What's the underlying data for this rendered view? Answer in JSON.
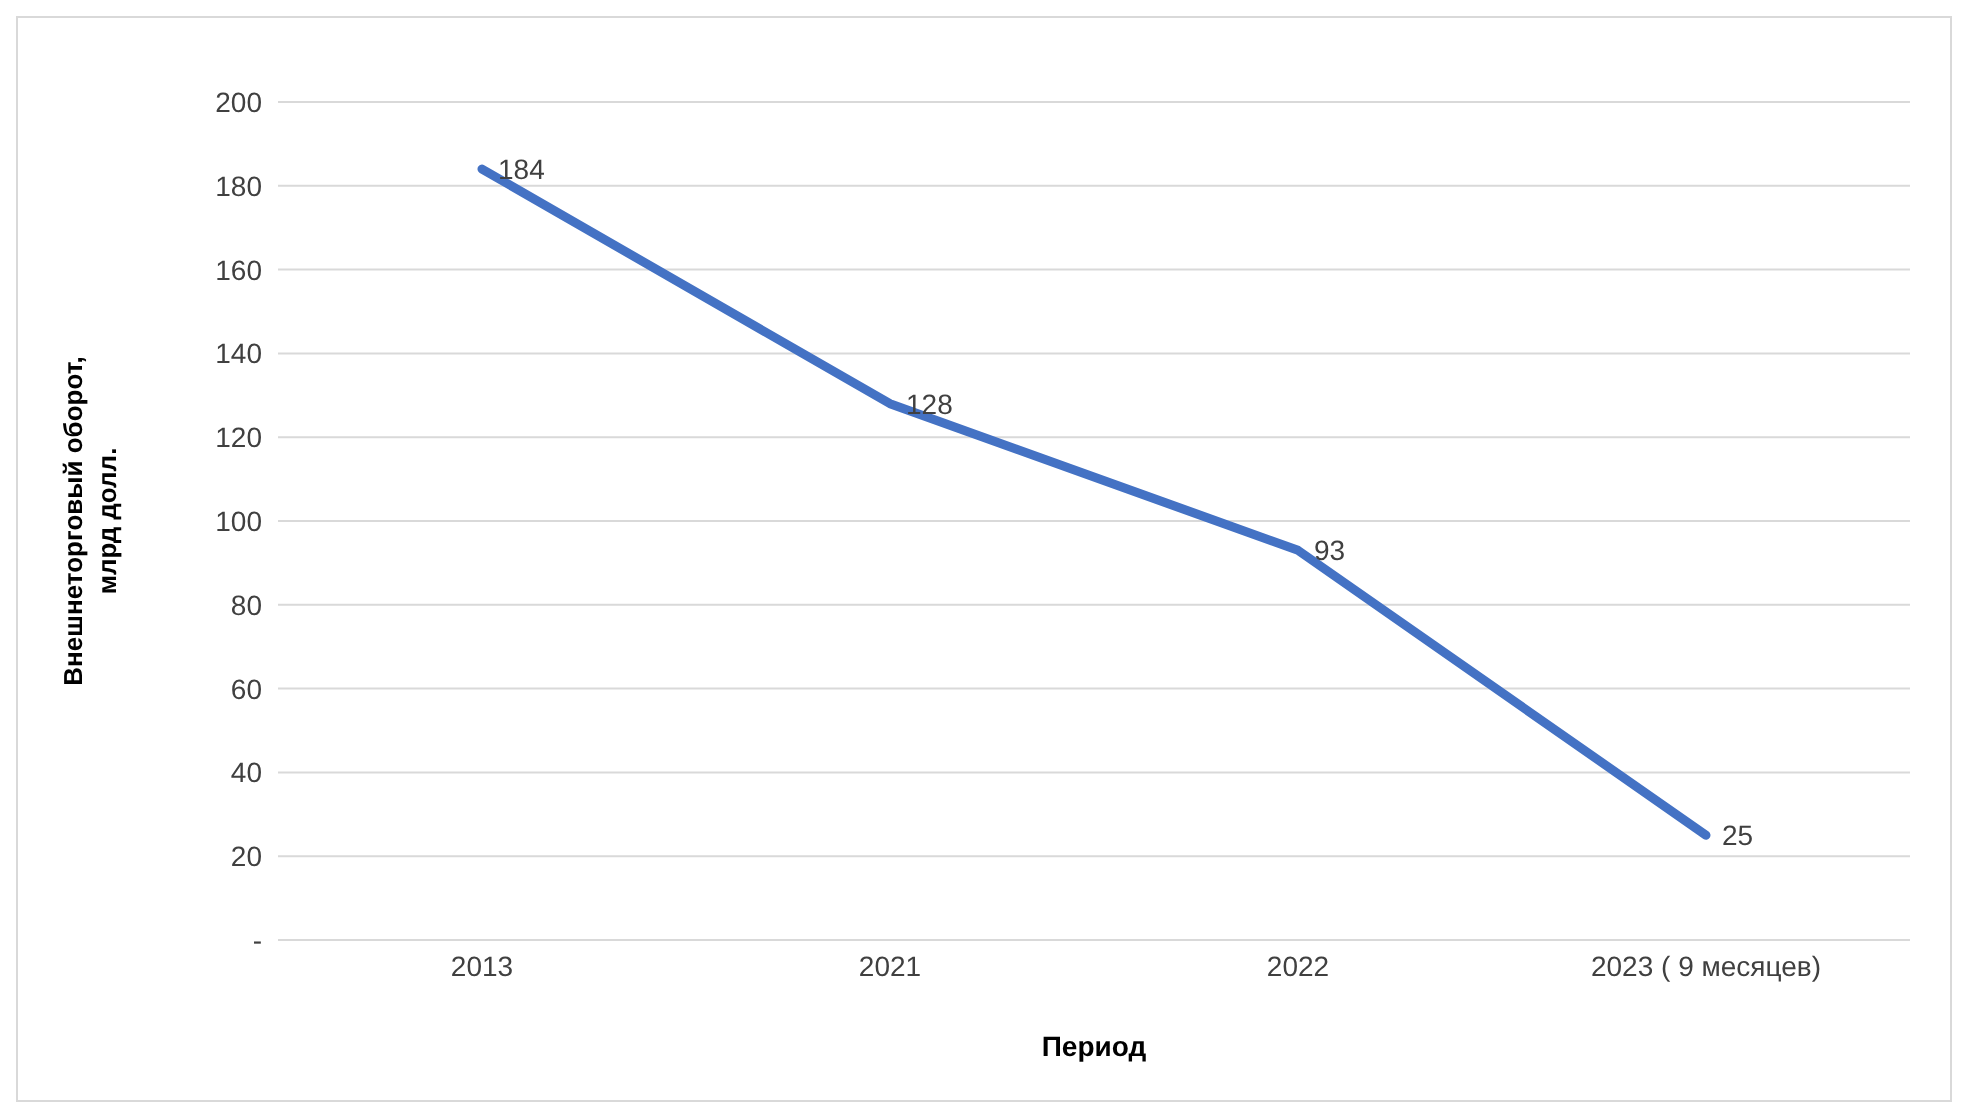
{
  "chart_data": {
    "type": "line",
    "xlabel": "Период",
    "ylabel": "Внешнеторговый оборот, млрд долл.",
    "categories": [
      "2013",
      "2021",
      "2022",
      "2023 ( 9 месяцев)"
    ],
    "series": [
      {
        "color": "#4472c4",
        "values": [
          184,
          128,
          93,
          25
        ]
      }
    ],
    "ylim": [
      0,
      200
    ],
    "yticks": [
      {
        "value": 0,
        "label": "-"
      },
      20,
      40,
      60,
      80,
      100,
      120,
      140,
      160,
      180,
      200
    ],
    "grid": "y",
    "data_labels": true,
    "marker": "none",
    "line_style": "solid",
    "legend": false
  }
}
